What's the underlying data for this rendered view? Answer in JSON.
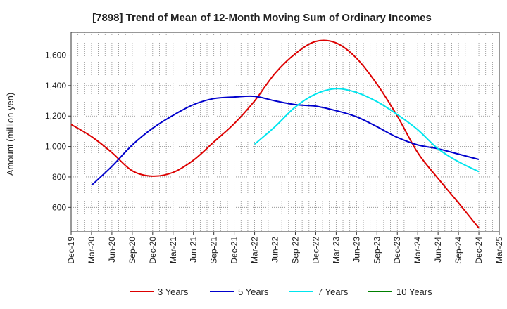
{
  "chart_data": {
    "type": "line",
    "title": "[7898]  Trend of Mean of 12-Month Moving Sum of Ordinary Incomes",
    "xlabel": "",
    "ylabel": "Amount (million yen)",
    "ylim": [
      440,
      1750
    ],
    "yticks": [
      600,
      800,
      1000,
      1200,
      1400,
      1600
    ],
    "ytick_labels": [
      "600",
      "800",
      "1,000",
      "1,200",
      "1,400",
      "1,600"
    ],
    "x_categories": [
      "Dec-19",
      "Mar-20",
      "Jun-20",
      "Sep-20",
      "Dec-20",
      "Mar-21",
      "Jun-21",
      "Sep-21",
      "Dec-21",
      "Mar-22",
      "Jun-22",
      "Sep-22",
      "Dec-22",
      "Mar-23",
      "Jun-23",
      "Sep-23",
      "Dec-23",
      "Mar-24",
      "Jun-24",
      "Sep-24",
      "Dec-24",
      "Mar-25"
    ],
    "grid": true,
    "legend_position": "bottom",
    "series": [
      {
        "name": "3 Years",
        "color": "#dd0000",
        "values": [
          1145,
          1065,
          960,
          840,
          805,
          830,
          910,
          1030,
          1150,
          1300,
          1480,
          1610,
          1690,
          1680,
          1580,
          1410,
          1200,
          960,
          790,
          630,
          465,
          null
        ]
      },
      {
        "name": "5 Years",
        "color": "#0000cc",
        "values": [
          null,
          745,
          870,
          1010,
          1120,
          1205,
          1275,
          1315,
          1325,
          1330,
          1300,
          1275,
          1265,
          1235,
          1195,
          1130,
          1060,
          1010,
          985,
          950,
          915,
          null
        ]
      },
      {
        "name": "7 Years",
        "color": "#00e5ee",
        "values": [
          null,
          null,
          null,
          null,
          null,
          null,
          null,
          null,
          null,
          1015,
          1130,
          1260,
          1345,
          1380,
          1355,
          1295,
          1210,
          1110,
          985,
          900,
          835,
          null
        ]
      },
      {
        "name": "10 Years",
        "color": "#008000",
        "values": [
          null,
          null,
          null,
          null,
          null,
          null,
          null,
          null,
          null,
          null,
          null,
          null,
          null,
          null,
          null,
          null,
          null,
          null,
          null,
          null,
          null,
          null
        ]
      }
    ]
  }
}
